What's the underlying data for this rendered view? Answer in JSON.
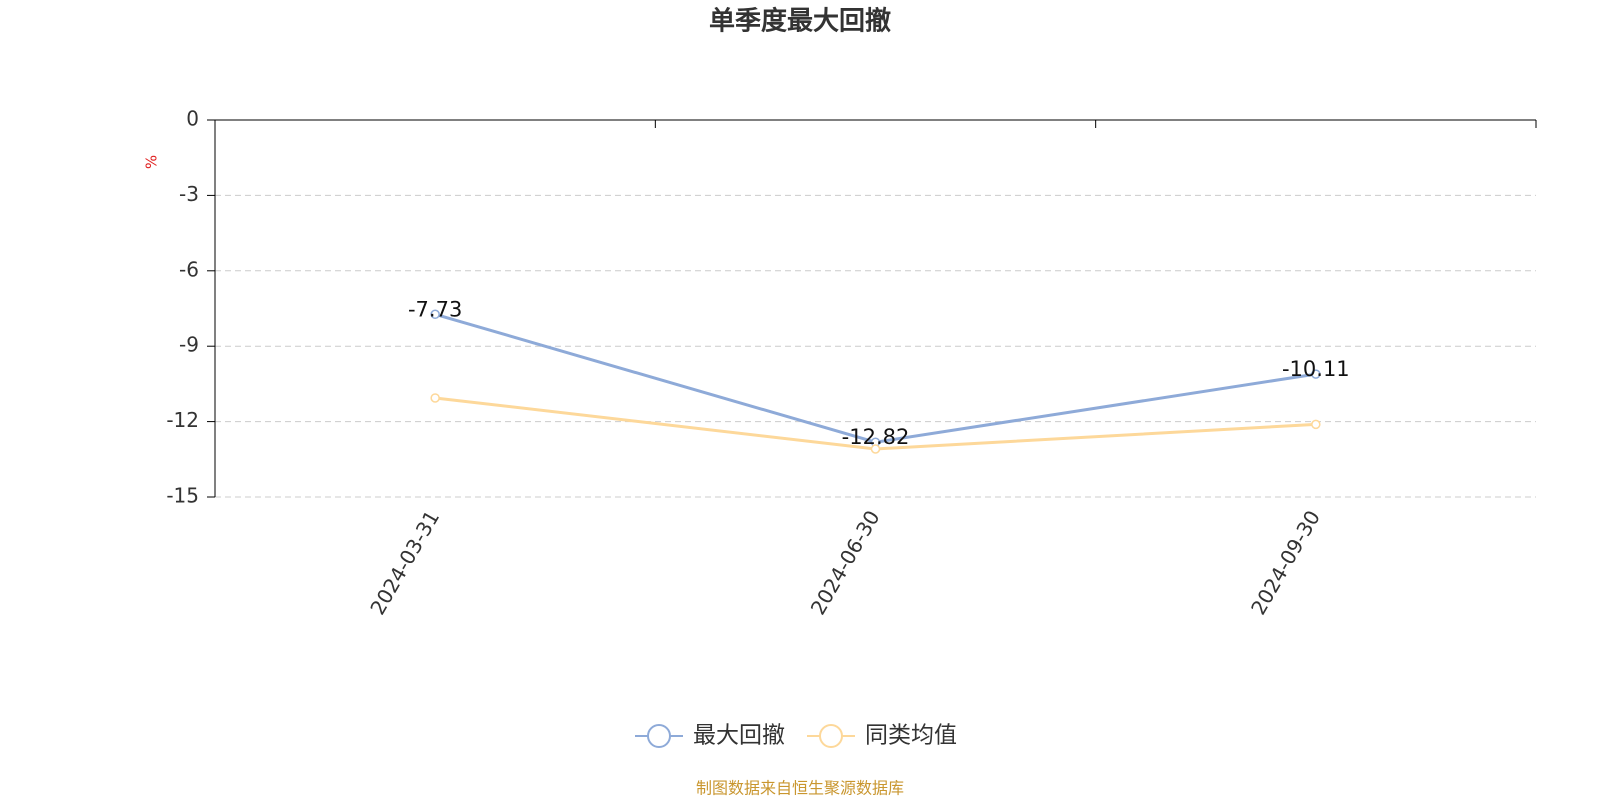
{
  "chart_data": {
    "type": "line",
    "title": "单季度最大回撤",
    "y_label": "%",
    "source": "制图数据来自恒生聚源数据库",
    "categories": [
      "2024-03-31",
      "2024-06-30",
      "2024-09-30"
    ],
    "series": [
      {
        "name": "最大回撤",
        "color": "#8eaad8",
        "values": [
          -7.73,
          -12.82,
          -10.11
        ],
        "show_labels": true
      },
      {
        "name": "同类均值",
        "color": "#fdd89a",
        "values": [
          -11.06,
          -13.09,
          -12.11
        ],
        "show_labels": false
      }
    ],
    "ylim": [
      -15,
      0
    ],
    "yticks": [
      0,
      -3,
      -6,
      -9,
      -12,
      -15
    ],
    "grid": true
  }
}
